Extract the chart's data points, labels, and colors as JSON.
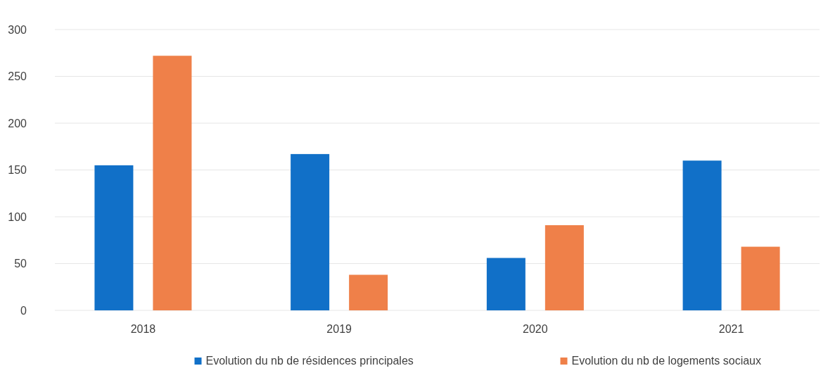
{
  "chart_data": {
    "type": "bar",
    "categories": [
      "2018",
      "2019",
      "2020",
      "2021"
    ],
    "series": [
      {
        "name": "Evolution du nb de résidences principales",
        "color": "#1170c8",
        "values": [
          155,
          167,
          56,
          160
        ]
      },
      {
        "name": "Evolution du nb de logements sociaux",
        "color": "#ef8049",
        "values": [
          272,
          38,
          91,
          68
        ]
      }
    ],
    "ylim": [
      0,
      300
    ],
    "yticks": [
      0,
      50,
      100,
      150,
      200,
      250,
      300
    ],
    "grid": "y",
    "legend": "bottom"
  }
}
